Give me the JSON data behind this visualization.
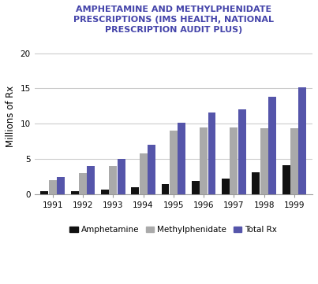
{
  "years": [
    "1991",
    "1992",
    "1993",
    "1994",
    "1995",
    "1996",
    "1997",
    "1998",
    "1999"
  ],
  "amphetamine": [
    0.4,
    0.4,
    0.7,
    1.0,
    1.4,
    1.9,
    2.2,
    3.1,
    4.1
  ],
  "methylphenidate": [
    2.0,
    3.0,
    4.0,
    5.8,
    9.0,
    9.5,
    9.5,
    9.4,
    9.4
  ],
  "total_rx": [
    2.5,
    4.0,
    5.0,
    7.0,
    10.1,
    11.6,
    12.0,
    13.8,
    15.2
  ],
  "bar_colors": {
    "amphetamine": "#111111",
    "methylphenidate": "#aaaaaa",
    "total_rx": "#5555aa"
  },
  "title": "AMPHETAMINE AND METHYLPHENIDATE\nPRESCRIPTIONS (IMS HEALTH, NATIONAL\nPRESCRIPTION AUDIT PLUS)",
  "title_color": "#4444aa",
  "ylabel": "Millions of Rx",
  "ylim": [
    0,
    22
  ],
  "yticks": [
    0,
    5,
    10,
    15,
    20
  ],
  "legend_labels": [
    "Amphetamine",
    "Methylphenidate",
    "Total Rx"
  ],
  "background_color": "#ffffff",
  "grid_color": "#cccccc",
  "title_fontsize": 8.0,
  "axis_label_fontsize": 8.5,
  "tick_fontsize": 7.5,
  "legend_fontsize": 7.5,
  "bar_width": 0.26,
  "bar_gap": 0.01
}
